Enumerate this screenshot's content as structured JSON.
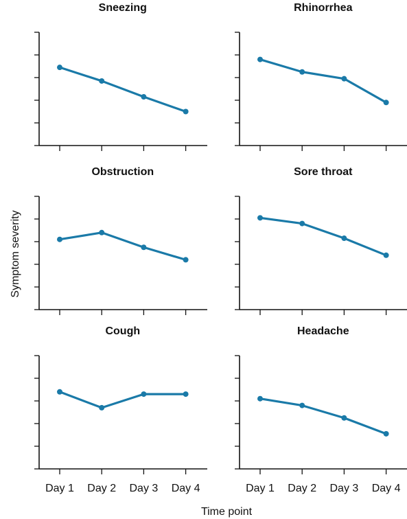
{
  "figure": {
    "xlabel": "Time point",
    "ylabel": "Symptom severity"
  },
  "chart_data": [
    {
      "type": "line",
      "title": "Sneezing",
      "categories": [
        "Day 1",
        "Day 2",
        "Day 3",
        "Day 4"
      ],
      "values": [
        3.45,
        2.85,
        2.15,
        1.5
      ],
      "ylim": [
        0,
        5
      ],
      "series_color": "#1a7aa8"
    },
    {
      "type": "line",
      "title": "Rhinorrhea",
      "categories": [
        "Day 1",
        "Day 2",
        "Day 3",
        "Day 4"
      ],
      "values": [
        3.8,
        3.25,
        2.95,
        1.9
      ],
      "ylim": [
        0,
        5
      ],
      "series_color": "#1a7aa8"
    },
    {
      "type": "line",
      "title": "Obstruction",
      "categories": [
        "Day 1",
        "Day 2",
        "Day 3",
        "Day 4"
      ],
      "values": [
        3.1,
        3.4,
        2.75,
        2.2
      ],
      "ylim": [
        0,
        5
      ],
      "series_color": "#1a7aa8"
    },
    {
      "type": "line",
      "title": "Sore throat",
      "categories": [
        "Day 1",
        "Day 2",
        "Day 3",
        "Day 4"
      ],
      "values": [
        4.05,
        3.8,
        3.15,
        2.4
      ],
      "ylim": [
        0,
        5
      ],
      "series_color": "#1a7aa8"
    },
    {
      "type": "line",
      "title": "Cough",
      "categories": [
        "Day 1",
        "Day 2",
        "Day 3",
        "Day 4"
      ],
      "values": [
        3.4,
        2.7,
        3.3,
        3.3
      ],
      "ylim": [
        0,
        5
      ],
      "series_color": "#1a7aa8"
    },
    {
      "type": "line",
      "title": "Headache",
      "categories": [
        "Day 1",
        "Day 2",
        "Day 3",
        "Day 4"
      ],
      "values": [
        3.1,
        2.8,
        2.25,
        1.55
      ],
      "ylim": [
        0,
        5
      ],
      "series_color": "#1a7aa8"
    }
  ]
}
